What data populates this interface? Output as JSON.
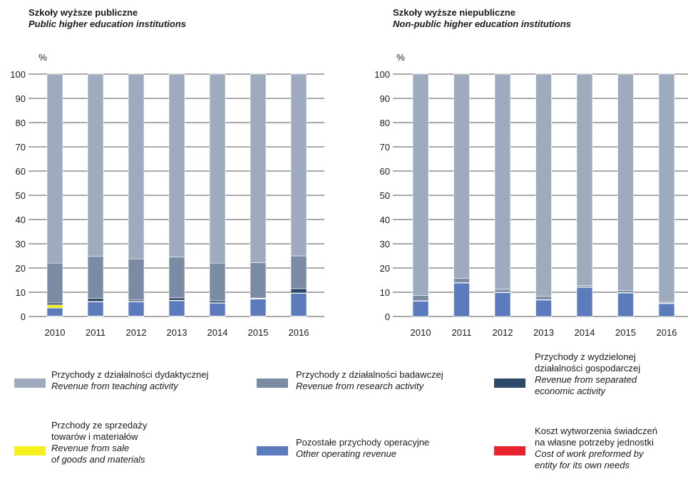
{
  "panels": [
    {
      "title_pl": "Szkoły wyższe publiczne",
      "title_en": "Public higher education institutions"
    },
    {
      "title_pl": "Szkoły wyższe niepubliczne",
      "title_en": "Non-public higher education institutions"
    }
  ],
  "legend": [
    {
      "pl": "Przychody z działalności dydaktycznej",
      "en": "Revenue from teaching activity",
      "color": "#9eabbf"
    },
    {
      "pl": "Przychody z działalności badawczej",
      "en": "Revenue from research activity",
      "color": "#7a8ba3"
    },
    {
      "pl": "Przychody z wydzielonej działalności gospodarczej",
      "en": "Revenue from separated economic activity",
      "color": "#2e4a6b"
    },
    {
      "pl": "Przchody ze sprzedaży towarów i materiałów",
      "en": "Revenue from sale of goods and materials",
      "color": "#f6ef1f"
    },
    {
      "pl": "Pozostałe przychody operacyjne",
      "en": "Other operating revenue",
      "color": "#5b7bbd"
    },
    {
      "pl": "Koszt wytworzenia świadczeń na własne potrzeby jednostki",
      "en": "Cost of work preformed by entity for its own needs",
      "color": "#e8232e"
    }
  ],
  "chart_data": [
    {
      "type": "bar",
      "stacked": true,
      "title": "Szkoły wyższe publiczne / Public higher education institutions",
      "ylabel": "%",
      "ylim": [
        0,
        100
      ],
      "yticks": [
        0,
        10,
        20,
        30,
        40,
        50,
        60,
        70,
        80,
        90,
        100
      ],
      "categories": [
        "2010",
        "2011",
        "2012",
        "2013",
        "2014",
        "2015",
        "2016"
      ],
      "series": [
        {
          "name": "Cost of work preformed by entity for its own needs",
          "color": "#e8232e",
          "values": [
            0.2,
            0.2,
            0.2,
            0.2,
            0.2,
            0.2,
            0.2
          ]
        },
        {
          "name": "Other operating revenue",
          "color": "#5b7bbd",
          "values": [
            3.3,
            5.8,
            5.8,
            6.3,
            5.3,
            7.0,
            9.3
          ]
        },
        {
          "name": "Revenue from sale of goods and materials",
          "color": "#f6ef1f",
          "values": [
            1.3,
            0.2,
            0.2,
            0.2,
            0.2,
            0.2,
            0.2
          ]
        },
        {
          "name": "Revenue from separated economic activity",
          "color": "#2e4a6b",
          "values": [
            0.8,
            1.3,
            0.6,
            1.0,
            0.8,
            0.2,
            1.8
          ]
        },
        {
          "name": "Revenue from research activity",
          "color": "#7a8ba3",
          "values": [
            16.4,
            17.4,
            17.0,
            16.9,
            15.5,
            14.6,
            13.5
          ]
        },
        {
          "name": "Revenue from teaching activity",
          "color": "#9eabbf",
          "values": [
            78.0,
            75.1,
            76.2,
            75.4,
            78.0,
            77.8,
            75.0
          ]
        }
      ]
    },
    {
      "type": "bar",
      "stacked": true,
      "title": "Szkoły wyższe niepubliczne / Non-public higher education institutions",
      "ylabel": "%",
      "ylim": [
        0,
        100
      ],
      "yticks": [
        0,
        10,
        20,
        30,
        40,
        50,
        60,
        70,
        80,
        90,
        100
      ],
      "categories": [
        "2010",
        "2011",
        "2012",
        "2013",
        "2014",
        "2015",
        "2016"
      ],
      "series": [
        {
          "name": "Cost of work preformed by entity for its own needs",
          "color": "#e8232e",
          "values": [
            0.0,
            0.0,
            0.0,
            0.0,
            0.0,
            0.0,
            0.0
          ]
        },
        {
          "name": "Other operating revenue",
          "color": "#5b7bbd",
          "values": [
            6.3,
            13.8,
            9.8,
            6.8,
            12.0,
            9.7,
            5.3
          ]
        },
        {
          "name": "Revenue from sale of goods and materials",
          "color": "#f6ef1f",
          "values": [
            0.0,
            0.0,
            0.0,
            0.0,
            0.0,
            0.0,
            0.0
          ]
        },
        {
          "name": "Revenue from separated economic activity",
          "color": "#2e4a6b",
          "values": [
            0.2,
            0.2,
            0.2,
            0.2,
            0.2,
            0.2,
            0.2
          ]
        },
        {
          "name": "Revenue from research activity",
          "color": "#7a8ba3",
          "values": [
            2.2,
            1.8,
            1.2,
            1.3,
            0.6,
            0.9,
            0.4
          ]
        },
        {
          "name": "Revenue from teaching activity",
          "color": "#9eabbf",
          "values": [
            91.3,
            84.2,
            88.8,
            91.7,
            87.2,
            89.2,
            94.1
          ]
        }
      ]
    }
  ]
}
